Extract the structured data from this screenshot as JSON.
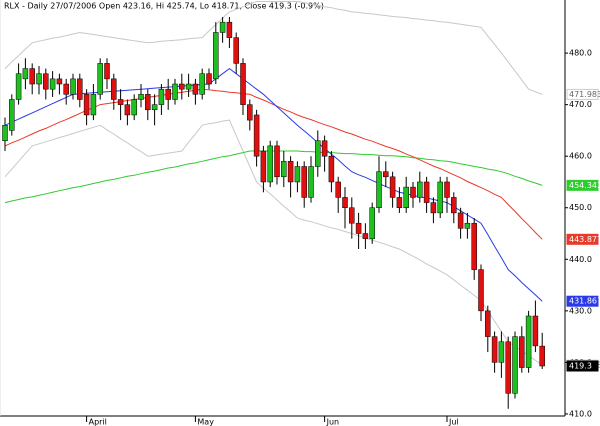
{
  "chart_data": {
    "type": "candlestick",
    "title": "RLX - Daily 27/07/2006 Open 423.16, Hi 425.74, Lo 418.71, Close 419.3 (-0.9%)",
    "categories": [
      null,
      null,
      null,
      null,
      null,
      null,
      null,
      null,
      null,
      null,
      null,
      null,
      "April",
      null,
      null,
      null,
      null,
      null,
      null,
      null,
      null,
      null,
      null,
      null,
      null,
      null,
      null,
      null,
      "May",
      null,
      null,
      null,
      null,
      null,
      null,
      null,
      null,
      null,
      null,
      null,
      null,
      null,
      null,
      null,
      null,
      null,
      null,
      "Jun",
      null,
      null,
      null,
      null,
      null,
      null,
      null,
      null,
      null,
      null,
      null,
      null,
      null,
      null,
      null,
      null,
      null,
      "Jul",
      null,
      null,
      null,
      null,
      null,
      null,
      null,
      null,
      null,
      null,
      null,
      null,
      null,
      null
    ],
    "open": [
      463,
      465,
      471,
      475,
      477,
      474,
      476,
      473,
      475,
      474,
      472,
      475,
      472,
      468,
      472,
      478,
      475,
      471,
      470,
      468,
      471,
      472,
      469,
      470,
      473,
      471,
      474,
      473,
      474,
      472,
      476,
      475,
      484,
      486,
      483,
      478,
      470,
      468,
      461,
      455,
      462,
      456,
      459,
      455,
      458,
      452,
      458,
      463,
      460,
      455,
      452,
      450,
      447,
      445,
      444,
      450,
      457,
      456,
      452,
      450,
      454,
      452,
      455,
      451,
      449,
      455,
      452,
      449,
      446,
      447,
      438,
      430,
      425,
      420,
      424,
      414,
      425,
      419,
      429,
      423.16
    ],
    "high": [
      467.5,
      472,
      478,
      479,
      478,
      477.5,
      477,
      476.5,
      476,
      475,
      476,
      476,
      473,
      474,
      479,
      479,
      476,
      473,
      471,
      472,
      474,
      473,
      472,
      474,
      475,
      475,
      476,
      476,
      475,
      477,
      477,
      486,
      487,
      487,
      484,
      479,
      471,
      469,
      462,
      463,
      463,
      461,
      460,
      459,
      459,
      460,
      465,
      464,
      461,
      456,
      454,
      452,
      449,
      447,
      451,
      460,
      459,
      457,
      454,
      456,
      455,
      457,
      456,
      452,
      456,
      456,
      453,
      450,
      449,
      448,
      439,
      431,
      426,
      426,
      425,
      426,
      427,
      430,
      432,
      425.74
    ],
    "low": [
      461,
      464,
      470,
      473,
      472,
      472,
      471,
      471.5,
      472,
      470,
      471,
      469.5,
      466,
      467,
      471,
      473,
      469,
      467,
      466,
      467,
      469.5,
      467,
      466,
      468,
      469,
      470,
      471,
      471.5,
      470,
      471,
      473,
      474,
      482,
      481,
      476,
      468,
      465,
      458,
      453,
      454,
      454.5,
      454,
      452,
      453,
      450,
      451,
      456,
      457,
      453,
      449,
      446,
      444,
      442,
      442,
      443,
      449,
      454,
      450,
      449,
      449,
      450,
      451,
      449,
      447,
      448,
      449,
      447,
      444,
      444,
      436,
      428,
      422,
      418,
      417,
      411,
      413,
      418,
      418,
      422,
      418.71
    ],
    "close": [
      466,
      471,
      476,
      477,
      474,
      476,
      473,
      475,
      474,
      472,
      475,
      471,
      468,
      472,
      478,
      475,
      471,
      470,
      468,
      471,
      472,
      469,
      470,
      473,
      471,
      474,
      473,
      474,
      472,
      476,
      474,
      484,
      486,
      483,
      478,
      470,
      467,
      460,
      455,
      462,
      456,
      459,
      455,
      458,
      452,
      458,
      463,
      460,
      455,
      452,
      450,
      447,
      445,
      444,
      450,
      457,
      456,
      452,
      450,
      454,
      452,
      455,
      451,
      449,
      455,
      452,
      449,
      446,
      447,
      438,
      430,
      425,
      420,
      424,
      414,
      425,
      419,
      429,
      423.2,
      419.3
    ],
    "up_color": "#1fbf1f",
    "down_color": "#e01010",
    "series": [
      {
        "color": "#c8c8c8",
        "values": [
          477,
          478.3,
          479.5,
          480.8,
          482,
          482.3,
          482.6,
          482.9,
          483.1,
          483.4,
          483.7,
          484,
          483.8,
          483.6,
          483.4,
          483.2,
          483,
          482.8,
          482.6,
          482.4,
          482.2,
          482,
          482.1,
          482.3,
          482.4,
          482.5,
          482.6,
          482.8,
          482.9,
          483,
          484.3,
          485.5,
          486.8,
          488,
          488.5,
          489,
          489.5,
          490,
          490,
          490,
          490,
          490,
          490,
          490,
          489.8,
          489.5,
          489.3,
          489,
          488.8,
          488.5,
          488.3,
          488,
          487.9,
          487.7,
          487.6,
          487.4,
          487.3,
          487.1,
          487,
          486.9,
          486.7,
          486.6,
          486.4,
          486.3,
          486.1,
          486,
          485.8,
          485.6,
          485.4,
          485.2,
          485,
          483.3,
          481.7,
          480,
          478.3,
          476.5,
          474.8,
          473,
          472.5,
          471.983
        ]
      },
      {
        "color": "#c8c8c8",
        "values": [
          456,
          457.5,
          459,
          460.5,
          462,
          462.4,
          462.8,
          463.2,
          463.6,
          464,
          464.4,
          464.8,
          465.2,
          465.6,
          466,
          465.1,
          464.3,
          463.4,
          462.6,
          461.7,
          460.9,
          460,
          460.2,
          460.4,
          460.6,
          460.8,
          461,
          462.7,
          464.3,
          466,
          466.3,
          466.5,
          466.8,
          467,
          464,
          461,
          458,
          455,
          453.8,
          452.7,
          451.5,
          450.3,
          449.2,
          448,
          447.6,
          447.3,
          446.9,
          446.5,
          446.1,
          445.8,
          445.4,
          445,
          444.6,
          444.1,
          443.7,
          443.3,
          442.9,
          442.4,
          442,
          441.3,
          440.6,
          439.9,
          439.1,
          438.4,
          437.7,
          437,
          436,
          435,
          434,
          433,
          432,
          430,
          428,
          426,
          424,
          423.1,
          422.2,
          421.3,
          420.4,
          419.468
        ]
      },
      {
        "color": "#2ecc2e",
        "values": [
          451,
          451.3,
          451.6,
          451.9,
          452.1,
          452.4,
          452.7,
          453,
          453.3,
          453.6,
          453.9,
          454.1,
          454.4,
          454.7,
          455,
          455.3,
          455.5,
          455.8,
          456.1,
          456.3,
          456.6,
          456.9,
          457.1,
          457.4,
          457.7,
          457.9,
          458.2,
          458.5,
          458.7,
          459,
          459.3,
          459.6,
          459.9,
          460.1,
          460.4,
          460.7,
          461,
          461,
          461,
          461,
          461,
          461,
          461,
          461,
          460.9,
          460.9,
          460.8,
          460.7,
          460.7,
          460.6,
          460.5,
          460.5,
          460.4,
          460.3,
          460.3,
          460.2,
          460.1,
          460.1,
          460,
          459.9,
          459.7,
          459.6,
          459.4,
          459.3,
          459.1,
          459,
          458.8,
          458.5,
          458.3,
          458,
          457.8,
          457.5,
          457.3,
          457,
          456.6,
          456.1,
          455.7,
          455.2,
          454.8,
          454.343
        ]
      },
      {
        "color": "#e83a2a",
        "values": [
          462,
          462.6,
          463.1,
          463.7,
          464.3,
          464.9,
          465.4,
          466,
          466.6,
          467.1,
          467.7,
          468.3,
          468.9,
          469.4,
          470,
          470.2,
          470.4,
          470.6,
          470.8,
          471,
          471.2,
          471.4,
          471.6,
          471.8,
          472,
          472.2,
          472.4,
          472.6,
          472.8,
          473,
          472.9,
          472.7,
          472.6,
          472.4,
          472.3,
          472.1,
          472,
          471.4,
          470.9,
          470.3,
          469.7,
          469.1,
          468.6,
          468,
          467.5,
          467.1,
          466.6,
          466.1,
          465.7,
          465.2,
          464.7,
          464.3,
          463.8,
          463.3,
          462.9,
          462.4,
          461.9,
          461.5,
          461,
          460.4,
          459.9,
          459.3,
          458.7,
          458.1,
          457.6,
          457,
          456.4,
          455.8,
          455.1,
          454.5,
          453.9,
          453.3,
          452.6,
          452,
          450.6,
          449.3,
          447.9,
          446.6,
          445.2,
          443.877
        ]
      },
      {
        "color": "#2a3ae8",
        "values": [
          466,
          466.6,
          467.2,
          467.8,
          468.4,
          469,
          469.6,
          470.2,
          470.8,
          471.4,
          472,
          472.1,
          472.2,
          472.3,
          472.4,
          472.5,
          472.6,
          472.7,
          472.8,
          472.9,
          473,
          473.1,
          473.2,
          473.3,
          473.4,
          473.5,
          473.6,
          473.7,
          473.8,
          473.9,
          474,
          475,
          476,
          477,
          476,
          475,
          474,
          473,
          472,
          470.8,
          469.6,
          468.4,
          467.2,
          466,
          464.9,
          463.8,
          462.6,
          461.5,
          460.4,
          459.3,
          458.1,
          457,
          456.4,
          455.9,
          455.3,
          454.7,
          454.1,
          453.6,
          453,
          452.7,
          452.4,
          452.1,
          451.9,
          451.6,
          451.3,
          451,
          450.2,
          449.4,
          448.6,
          447.8,
          447,
          444.8,
          442.5,
          440.3,
          438,
          436.8,
          435.5,
          434.3,
          433.1,
          431.867
        ]
      }
    ],
    "ylim": [
      409.6,
      490.3
    ],
    "yticks": [
      {
        "value": 410,
        "label": "410.0"
      },
      {
        "value": 420,
        "label": "420.0"
      },
      {
        "value": 430,
        "label": "430.0"
      },
      {
        "value": 440,
        "label": "440.0"
      },
      {
        "value": 450,
        "label": "450.0"
      },
      {
        "value": 460,
        "label": "460.0"
      },
      {
        "value": 470,
        "label": "470.0"
      },
      {
        "value": 480,
        "label": "480.0"
      }
    ],
    "grid": false
  }
}
